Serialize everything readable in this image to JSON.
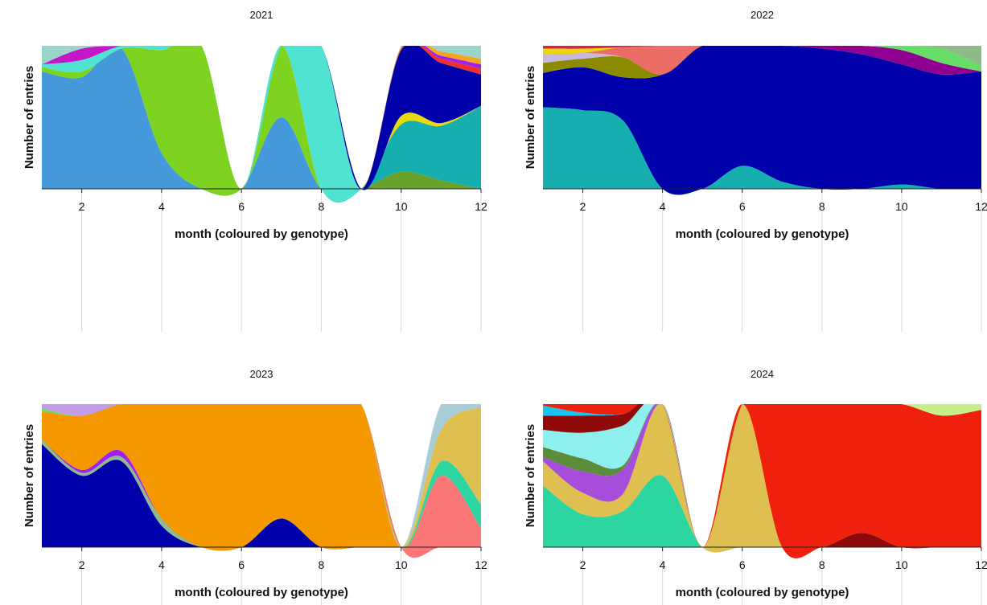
{
  "chart_data": [
    {
      "type": "area",
      "title": "2021",
      "xlabel": "month (coloured by genotype)",
      "ylabel": "Number of entries",
      "xlim": [
        1,
        12
      ],
      "ylim": [
        0,
        1
      ],
      "stacked": "normalized",
      "xticks": [
        2,
        4,
        6,
        8,
        10,
        12
      ],
      "x": [
        1,
        2,
        3,
        4,
        5,
        6,
        7,
        8,
        9,
        10,
        11,
        12
      ],
      "series": [
        {
          "color": "#6aa12a",
          "values": [
            0,
            0,
            0,
            0,
            0,
            0,
            0,
            0,
            0,
            0.12,
            0.06,
            0
          ]
        },
        {
          "color": "#17aeaf",
          "values": [
            0,
            0,
            0,
            0,
            0,
            0,
            0,
            0,
            0,
            0.33,
            0.38,
            0.58
          ]
        },
        {
          "color": "#e8d90a",
          "values": [
            0,
            0,
            0,
            0,
            0,
            0,
            0,
            0,
            0,
            0.06,
            0.02,
            0
          ]
        },
        {
          "color": "#4399d9",
          "values": [
            0.82,
            0.78,
            0.98,
            0.25,
            0,
            0,
            0.5,
            0,
            0,
            0,
            0,
            0
          ]
        },
        {
          "color": "#7ed321",
          "values": [
            0.03,
            0.04,
            0,
            0.72,
            1,
            0,
            0.5,
            0,
            0,
            0,
            0,
            0
          ]
        },
        {
          "color": "#50e3d2",
          "values": [
            0.02,
            0.08,
            0.02,
            0.03,
            0,
            0,
            0,
            1,
            0,
            0,
            0,
            0
          ]
        },
        {
          "color": "#c417c7",
          "values": [
            0,
            0.08,
            0,
            0,
            0,
            0,
            0,
            0,
            0,
            0,
            0,
            0
          ]
        },
        {
          "color": "#0000aa",
          "values": [
            0,
            0,
            0,
            0,
            0,
            0,
            0,
            0,
            0,
            0.46,
            0.42,
            0.22
          ]
        },
        {
          "color": "#f03030",
          "values": [
            0,
            0,
            0,
            0,
            0,
            0,
            0,
            0,
            0,
            0.01,
            0.03,
            0.04
          ]
        },
        {
          "color": "#a020f0",
          "values": [
            0,
            0,
            0,
            0,
            0,
            0,
            0,
            0,
            0,
            0,
            0.02,
            0.03
          ]
        },
        {
          "color": "#f5a623",
          "values": [
            0,
            0,
            0,
            0,
            0,
            0,
            0,
            0,
            0,
            0.01,
            0.03,
            0.04
          ]
        },
        {
          "color": "#9bd4c8",
          "values": [
            0.13,
            0.02,
            0,
            0,
            0,
            0,
            0,
            0,
            0,
            0.01,
            0.04,
            0.09
          ]
        }
      ]
    },
    {
      "type": "area",
      "title": "2022",
      "xlabel": "month (coloured by genotype)",
      "ylabel": "Number of entries",
      "xlim": [
        1,
        12
      ],
      "ylim": [
        0,
        1
      ],
      "stacked": "normalized",
      "xticks": [
        2,
        4,
        6,
        8,
        10,
        12
      ],
      "x": [
        1,
        2,
        3,
        4,
        5,
        6,
        7,
        8,
        9,
        10,
        11,
        12
      ],
      "series": [
        {
          "color": "#17aeaf",
          "values": [
            0.57,
            0.55,
            0.48,
            0,
            0,
            0.16,
            0.05,
            0,
            0,
            0.03,
            0,
            0
          ]
        },
        {
          "color": "#0000aa",
          "values": [
            0.24,
            0.3,
            0.3,
            0.8,
            1,
            0.84,
            0.95,
            0.98,
            0.94,
            0.84,
            0.8,
            0.82
          ]
        },
        {
          "color": "#8b8b00",
          "values": [
            0.07,
            0.06,
            0.14,
            0,
            0,
            0,
            0,
            0,
            0,
            0,
            0,
            0
          ]
        },
        {
          "color": "#c8b8e0",
          "values": [
            0.06,
            0.04,
            0,
            0,
            0,
            0,
            0,
            0,
            0,
            0,
            0,
            0
          ]
        },
        {
          "color": "#ec6c66",
          "values": [
            0,
            0,
            0.07,
            0.2,
            0,
            0,
            0,
            0,
            0,
            0,
            0,
            0
          ]
        },
        {
          "color": "#e8d90a",
          "values": [
            0.04,
            0.03,
            0,
            0,
            0,
            0,
            0,
            0,
            0,
            0,
            0,
            0
          ]
        },
        {
          "color": "#900090",
          "values": [
            0,
            0,
            0,
            0,
            0,
            0,
            0,
            0.02,
            0.06,
            0.1,
            0.08,
            0
          ]
        },
        {
          "color": "#66dd66",
          "values": [
            0,
            0,
            0,
            0,
            0,
            0,
            0,
            0,
            0,
            0.03,
            0.1,
            0.04
          ]
        },
        {
          "color": "#8dbb88",
          "values": [
            0,
            0,
            0,
            0,
            0,
            0,
            0,
            0,
            0,
            0,
            0.02,
            0.14
          ]
        },
        {
          "color": "#dd2244",
          "values": [
            0.02,
            0.02,
            0.01,
            0,
            0,
            0,
            0,
            0,
            0,
            0,
            0,
            0
          ]
        }
      ]
    },
    {
      "type": "area",
      "title": "2023",
      "xlabel": "month (coloured by genotype)",
      "ylabel": "Number of entries",
      "xlim": [
        1,
        12
      ],
      "ylim": [
        0,
        1
      ],
      "stacked": "normalized",
      "xticks": [
        2,
        4,
        6,
        8,
        10,
        12
      ],
      "x": [
        1,
        2,
        3,
        4,
        5,
        6,
        7,
        8,
        9,
        10,
        11,
        12
      ],
      "series": [
        {
          "color": "#0000aa",
          "values": [
            0.72,
            0.5,
            0.6,
            0.15,
            0,
            0,
            0.2,
            0,
            0,
            0,
            0,
            0
          ]
        },
        {
          "color": "#8fbc8f",
          "values": [
            0.03,
            0.02,
            0.03,
            0.05,
            0,
            0,
            0,
            0,
            0,
            0,
            0,
            0
          ]
        },
        {
          "color": "#a020f0",
          "values": [
            0,
            0.02,
            0.04,
            0,
            0,
            0,
            0,
            0,
            0,
            0,
            0,
            0
          ]
        },
        {
          "color": "#f59800",
          "values": [
            0.2,
            0.38,
            0.33,
            0.8,
            1,
            1,
            0.8,
            1,
            1,
            0,
            0,
            0
          ]
        },
        {
          "color": "#66dd66",
          "values": [
            0.02,
            0,
            0,
            0,
            0,
            0,
            0,
            0,
            0,
            0,
            0,
            0
          ]
        },
        {
          "color": "#c39be8",
          "values": [
            0.03,
            0.08,
            0,
            0,
            0,
            0,
            0,
            0,
            0,
            0,
            0,
            0
          ]
        },
        {
          "color": "#fb7676",
          "values": [
            0,
            0,
            0,
            0,
            0,
            0,
            0,
            0,
            0,
            0,
            0.5,
            0.13
          ]
        },
        {
          "color": "#2dd5a0",
          "values": [
            0,
            0,
            0,
            0,
            0,
            0,
            0,
            0,
            0,
            0,
            0.1,
            0.17
          ]
        },
        {
          "color": "#dfbf50",
          "values": [
            0,
            0,
            0,
            0,
            0,
            0,
            0,
            0,
            0,
            0,
            0.22,
            0.68
          ]
        },
        {
          "color": "#a8ccd8",
          "values": [
            0,
            0,
            0,
            0,
            0,
            0,
            0,
            0,
            0,
            0,
            0.18,
            0.02
          ]
        }
      ]
    },
    {
      "type": "area",
      "title": "2024",
      "xlabel": "month (coloured by genotype)",
      "ylabel": "Number of entries",
      "xlim": [
        1,
        12
      ],
      "ylim": [
        0,
        1
      ],
      "stacked": "normalized",
      "xticks": [
        2,
        4,
        6,
        8,
        10,
        12
      ],
      "x": [
        1,
        2,
        3,
        4,
        5,
        6,
        7,
        8,
        9,
        10,
        11,
        12
      ],
      "series": [
        {
          "color": "#8b0a0a",
          "values": [
            0,
            0,
            0,
            0,
            0,
            0,
            0,
            0,
            0.1,
            0,
            0,
            0
          ]
        },
        {
          "color": "#2dd5a0",
          "values": [
            0.43,
            0.23,
            0.25,
            0.5,
            0,
            0,
            0,
            0,
            0,
            0,
            0,
            0
          ]
        },
        {
          "color": "#dfbf50",
          "values": [
            0.17,
            0.15,
            0.12,
            0.5,
            0,
            1,
            0,
            0,
            0,
            0,
            0,
            0
          ]
        },
        {
          "color": "#a64ddb",
          "values": [
            0.03,
            0.15,
            0.17,
            0,
            0,
            0,
            0,
            0,
            0,
            0,
            0,
            0
          ]
        },
        {
          "color": "#5c8d3a",
          "values": [
            0.07,
            0.09,
            0.03,
            0,
            0,
            0,
            0,
            0,
            0,
            0,
            0,
            0
          ]
        },
        {
          "color": "#8df0ee",
          "values": [
            0.12,
            0.18,
            0.28,
            0,
            0,
            0,
            0,
            0,
            0,
            0,
            0,
            0
          ]
        },
        {
          "color": "#900a0a",
          "values": [
            0.1,
            0.12,
            0.08,
            0,
            0,
            0,
            0,
            0,
            0,
            0,
            0,
            0
          ]
        },
        {
          "color": "#18c4f0",
          "values": [
            0.07,
            0.02,
            0,
            0,
            0,
            0,
            0,
            0,
            0,
            0,
            0,
            0
          ]
        },
        {
          "color": "#f0200f",
          "values": [
            0.01,
            0.06,
            0.07,
            0,
            0,
            0,
            1,
            1,
            0.9,
            1,
            0.92,
            0.96
          ]
        },
        {
          "color": "#c6f08a",
          "values": [
            0,
            0,
            0,
            0,
            0,
            0,
            0,
            0,
            0,
            0,
            0.08,
            0.04
          ]
        }
      ]
    }
  ]
}
